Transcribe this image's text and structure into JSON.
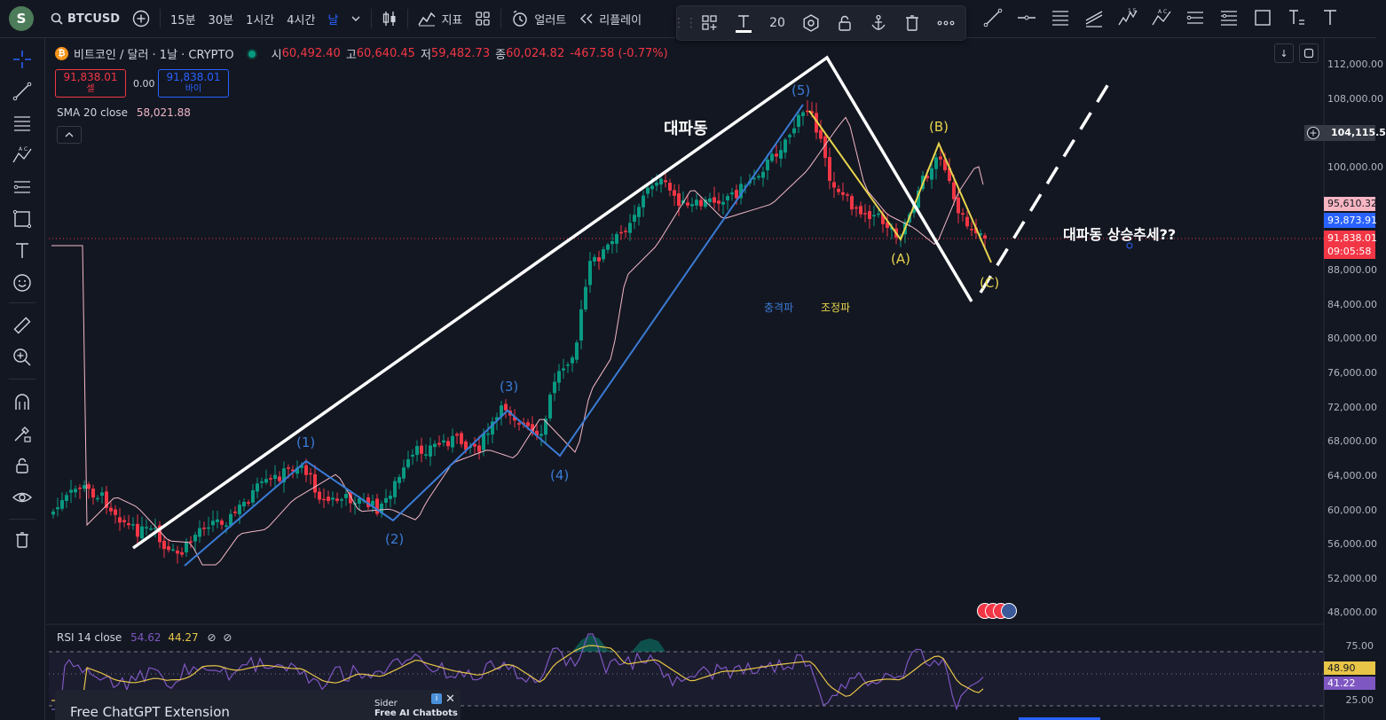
{
  "topbar": {
    "avatar": "S",
    "symbol": "BTCUSD",
    "intervals": [
      "15분",
      "30분",
      "1시간",
      "4시간",
      "날"
    ],
    "indicators_label": "지표",
    "alerts_label": "얼러트",
    "replay_label": "리플레이"
  },
  "floating_toolbar": {
    "font_size": "20"
  },
  "legend": {
    "title": "비트코인 / 달러 · 1날 · CRYPTO",
    "open_label": "시",
    "open": "60,492.40",
    "high_label": "고",
    "high": "60,640.45",
    "low_label": "저",
    "low": "59,482.73",
    "close_label": "종",
    "close": "60,024.82",
    "change": "-467.58 (-0.77%)"
  },
  "trade": {
    "sell_price": "91,838.01",
    "sell_label": "셀",
    "spread": "0.00",
    "buy_price": "91,838.01",
    "buy_label": "바이"
  },
  "sma": {
    "label": "SMA 20 close",
    "value": "58,021.88"
  },
  "price_axis": [
    "112,000.00",
    "108,000.00",
    "104,115.5",
    "100,000.00",
    "95,610.32",
    "93,873.91",
    "91,838.01",
    "09:05:58",
    "88,000.00",
    "84,000.00",
    "80,000.00",
    "76,000.00",
    "72,000.00",
    "68,000.00",
    "64,000.00",
    "60,000.00",
    "56,000.00",
    "52,000.00",
    "48,000.00"
  ],
  "rsi_axis": [
    "75.00",
    "48.90",
    "41.22",
    "25.00"
  ],
  "annotations": {
    "big_wave": "대파동",
    "wave1": "(1)",
    "wave2": "(2)",
    "wave3": "(3)",
    "wave4": "(4)",
    "wave5": "(5)",
    "waveA": "(A)",
    "waveB": "(B)",
    "waveC": "(C)",
    "impulse": "충격파",
    "correction": "조정파",
    "question": "대파동 상승추세??"
  },
  "rsi": {
    "label": "RSI 14 close",
    "value1": "54.62",
    "value2": "44.27"
  },
  "ad": {
    "title": "Free ChatGPT Extension",
    "sider_name": "Sider",
    "sider_tagline": "Free AI Chatbots"
  },
  "colors": {
    "up": "#089981",
    "down": "#f23645",
    "impulse": "#3a7bd5",
    "correction": "#e8d44d",
    "rsi": "#7e57c2"
  }
}
